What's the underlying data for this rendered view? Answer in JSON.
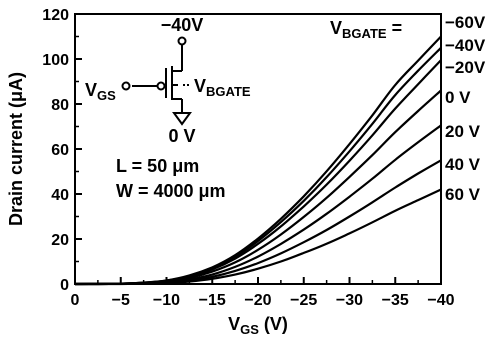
{
  "chart_data": {
    "type": "line",
    "xlabel": "V",
    "xlabel_sub": "GS",
    "xlabel_unit": " (V)",
    "ylabel": "Drain current (μA)",
    "xlim": [
      0,
      -40
    ],
    "ylim": [
      0,
      120
    ],
    "x_ticks": [
      0,
      -5,
      -10,
      -15,
      -20,
      -25,
      -30,
      -35,
      -40
    ],
    "x_tick_labels": [
      "0",
      "−5",
      "−10",
      "−15",
      "−20",
      "−25",
      "−30",
      "−35",
      "−40"
    ],
    "y_ticks": [
      0,
      20,
      40,
      60,
      80,
      100,
      120
    ],
    "y_tick_labels": [
      "0",
      "20",
      "40",
      "60",
      "80",
      "100",
      "120"
    ],
    "legend_title_main": "V",
    "legend_title_sub": "BGATE",
    "legend_title_suffix": " =",
    "x": [
      0,
      -2.5,
      -5,
      -7.5,
      -10,
      -12.5,
      -15,
      -17.5,
      -20,
      -22.5,
      -25,
      -27.5,
      -30,
      -32.5,
      -35,
      -37.5,
      -40
    ],
    "series": [
      {
        "name": "−60V",
        "values": [
          0.0,
          0.1,
          0.2,
          0.6,
          1.6,
          3.8,
          7.4,
          12.8,
          20.2,
          29.0,
          39.0,
          50.1,
          62.2,
          75.0,
          88.5,
          99.3,
          110.0
        ]
      },
      {
        "name": "−40V",
        "values": [
          0.0,
          0.1,
          0.2,
          0.6,
          1.5,
          3.6,
          7.0,
          12.2,
          19.1,
          27.5,
          37.0,
          47.5,
          59.0,
          71.2,
          84.0,
          94.8,
          105.0
        ]
      },
      {
        "name": "−20V",
        "values": [
          0.0,
          0.1,
          0.2,
          0.5,
          1.4,
          3.3,
          6.5,
          11.3,
          17.8,
          25.6,
          34.5,
          44.2,
          54.8,
          66.1,
          78.0,
          88.8,
          99.5
        ]
      },
      {
        "name": "0 V",
        "values": [
          0.0,
          0.0,
          0.1,
          0.4,
          1.1,
          2.7,
          5.5,
          9.6,
          15.2,
          22.0,
          29.8,
          38.3,
          47.6,
          57.3,
          67.5,
          76.9,
          86.0
        ]
      },
      {
        "name": "20 V",
        "values": [
          0.0,
          0.0,
          0.1,
          0.3,
          0.8,
          2.0,
          4.2,
          7.6,
          12.2,
          17.8,
          24.2,
          31.2,
          38.8,
          46.8,
          55.2,
          63.0,
          70.5
        ]
      },
      {
        "name": "40 V",
        "values": [
          0.0,
          0.0,
          0.1,
          0.2,
          0.6,
          1.5,
          3.2,
          5.8,
          9.3,
          13.6,
          18.6,
          24.0,
          30.0,
          36.3,
          42.9,
          49.1,
          55.0
        ]
      },
      {
        "name": "60 V",
        "values": [
          0.0,
          0.0,
          0.0,
          0.1,
          0.4,
          1.1,
          2.3,
          4.2,
          6.8,
          10.0,
          13.8,
          17.9,
          22.5,
          27.4,
          32.6,
          37.3,
          42.0
        ]
      }
    ],
    "grid": false,
    "legend_position": "right"
  },
  "inset": {
    "drain_voltage": "−40V",
    "gate_label_main": "V",
    "gate_label_sub": "GS",
    "back_gate_label_main": "V",
    "back_gate_label_sub": "BGATE",
    "source_voltage": "0 V",
    "length": "L  = 50 μm",
    "width": "W = 4000 μm"
  }
}
